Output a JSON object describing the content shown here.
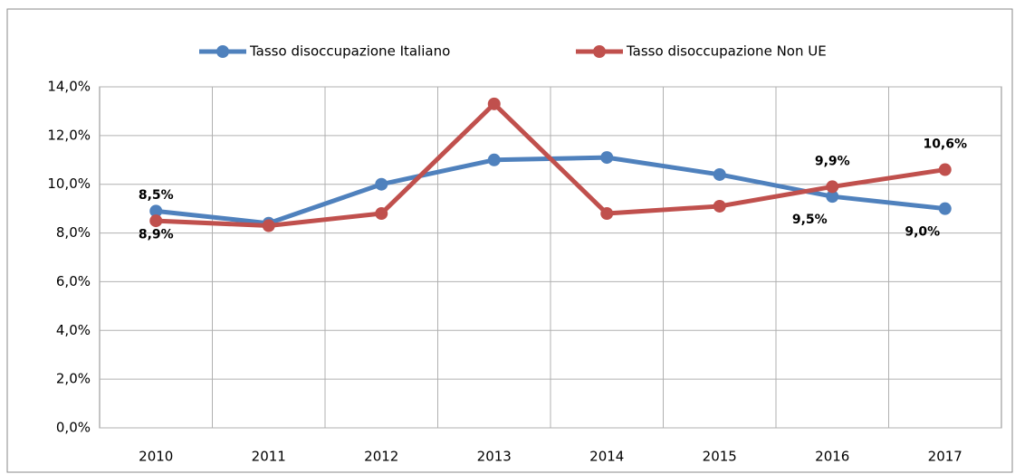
{
  "chart_data": {
    "type": "line",
    "categories": [
      "2010",
      "2011",
      "2012",
      "2013",
      "2014",
      "2015",
      "2016",
      "2017"
    ],
    "series": [
      {
        "name": "Tasso disoccupazione Italiano",
        "color": "#4f81bd",
        "values": [
          8.9,
          8.4,
          10.0,
          11.0,
          11.1,
          10.4,
          9.5,
          9.0
        ],
        "value_labels": [
          "8,9%",
          null,
          null,
          null,
          null,
          null,
          "9,5%",
          "9,0%"
        ]
      },
      {
        "name": "Tasso disoccupazione Non UE",
        "color": "#c0504d",
        "values": [
          8.5,
          8.3,
          8.8,
          13.3,
          8.8,
          9.1,
          9.9,
          10.6
        ],
        "value_labels": [
          "8,5%",
          null,
          null,
          null,
          null,
          null,
          "9,9%",
          "10,6%"
        ]
      }
    ],
    "ylim": [
      0,
      14
    ],
    "yticks": [
      {
        "value": 0,
        "label": "0,0%"
      },
      {
        "value": 2,
        "label": "2,0%"
      },
      {
        "value": 4,
        "label": "4,0%"
      },
      {
        "value": 6,
        "label": "6,0%"
      },
      {
        "value": 8,
        "label": "8,0%"
      },
      {
        "value": 10,
        "label": "10,0%"
      },
      {
        "value": 12,
        "label": "12,0%"
      },
      {
        "value": 14,
        "label": "14,0%"
      }
    ],
    "grid": true,
    "legend": "top"
  }
}
